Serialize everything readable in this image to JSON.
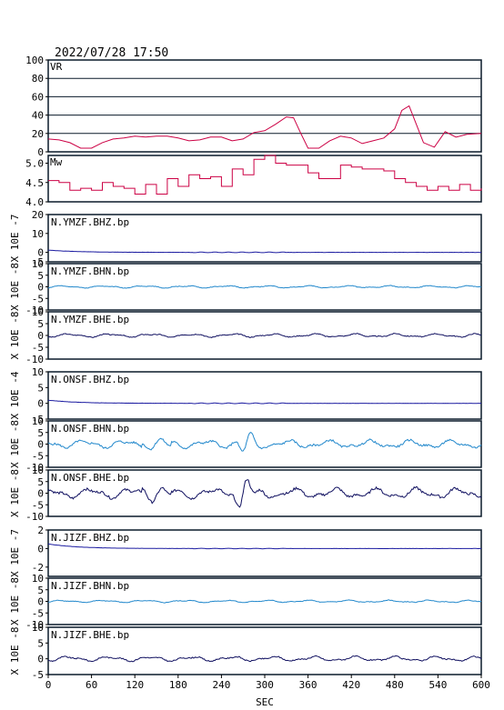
{
  "header": {
    "timestamp": "2022/07/28 17:50"
  },
  "colors": {
    "vr_mw": "#cc0044",
    "bhz": "#1a1aa0",
    "bhn": "#2288cc",
    "bhe": "#101060",
    "frame": "#0a1a2a"
  },
  "chart_data": {
    "type": "line",
    "xlabel": "SEC",
    "x_ticks": [
      0,
      60,
      120,
      180,
      240,
      300,
      360,
      420,
      480,
      540,
      600
    ],
    "xlim": [
      0,
      600
    ],
    "panels": [
      {
        "label": "VR",
        "ylim": [
          0,
          100
        ],
        "yticks": [
          0,
          20,
          40,
          60,
          80,
          100
        ],
        "grid": true,
        "series": {
          "x": [
            0,
            15,
            30,
            45,
            60,
            75,
            90,
            105,
            120,
            135,
            150,
            165,
            180,
            195,
            210,
            225,
            240,
            255,
            270,
            285,
            300,
            315,
            330,
            340,
            350,
            360,
            375,
            390,
            405,
            420,
            435,
            450,
            465,
            480,
            490,
            500,
            510,
            520,
            535,
            550,
            565,
            580,
            600
          ],
          "y": [
            14,
            13,
            10,
            4,
            4,
            10,
            14,
            15,
            17,
            16,
            17,
            17,
            15,
            12,
            13,
            16,
            16,
            12,
            14,
            21,
            23,
            30,
            38,
            37,
            20,
            4,
            4,
            12,
            17,
            15,
            9,
            12,
            15,
            25,
            45,
            50,
            30,
            10,
            5,
            22,
            16,
            19,
            20
          ]
        }
      },
      {
        "label": "Mw",
        "ylim": [
          4.0,
          5.2
        ],
        "yticks": [
          4.0,
          4.5,
          5.0
        ],
        "grid": false,
        "series": {
          "x": [
            0,
            15,
            30,
            45,
            60,
            75,
            90,
            105,
            120,
            135,
            150,
            165,
            180,
            195,
            210,
            225,
            240,
            255,
            270,
            285,
            300,
            315,
            330,
            345,
            360,
            375,
            390,
            405,
            420,
            435,
            450,
            465,
            480,
            495,
            510,
            525,
            540,
            555,
            570,
            585,
            600
          ],
          "y": [
            4.55,
            4.5,
            4.3,
            4.35,
            4.3,
            4.5,
            4.4,
            4.35,
            4.2,
            4.45,
            4.2,
            4.6,
            4.4,
            4.7,
            4.6,
            4.65,
            4.4,
            4.85,
            4.7,
            5.1,
            5.2,
            5.0,
            4.95,
            4.95,
            4.75,
            4.6,
            4.6,
            4.95,
            4.9,
            4.85,
            4.85,
            4.8,
            4.6,
            4.5,
            4.4,
            4.3,
            4.4,
            4.3,
            4.45,
            4.3,
            4.35
          ]
        }
      }
    ],
    "station_groups": [
      {
        "station": "N.YMZF",
        "traces": [
          {
            "name": "N.YMZF.BHZ.bp",
            "scale": "X 10E -7",
            "ylim": [
              -5,
              20
            ],
            "yticks": [
              -5,
              0,
              10,
              20
            ],
            "amplitude": 0.3,
            "decay": 1.2,
            "seed": 1
          },
          {
            "name": "N.YMZF.BHN.bp",
            "scale": "X 10E -8",
            "ylim": [
              -10,
              10
            ],
            "yticks": [
              -10,
              -5,
              0,
              5,
              10
            ],
            "amplitude": 0.6,
            "seed": 2
          },
          {
            "name": "N.YMZF.BHE.bp",
            "scale": "X 10E -8",
            "ylim": [
              -10,
              10
            ],
            "yticks": [
              -10,
              -5,
              0,
              5,
              10
            ],
            "amplitude": 0.9,
            "seed": 3
          }
        ]
      },
      {
        "station": "N.ONSF",
        "traces": [
          {
            "name": "N.ONSF.BHZ.bp",
            "scale": "X 10E -4",
            "ylim": [
              -5,
              10
            ],
            "yticks": [
              -5,
              0,
              5,
              10
            ],
            "amplitude": 0.2,
            "decay": 1.0,
            "seed": 4
          },
          {
            "name": "N.ONSF.BHN.bp",
            "scale": "X 10E -8",
            "ylim": [
              -10,
              10
            ],
            "yticks": [
              -10,
              -5,
              0,
              5,
              10
            ],
            "amplitude": 2.0,
            "burst_at": 275,
            "burst_amp": 4.0,
            "seed": 5
          },
          {
            "name": "N.ONSF.BHE.bp",
            "scale": "X 10E -8",
            "ylim": [
              -10,
              10
            ],
            "yticks": [
              -10,
              -5,
              0,
              5,
              10
            ],
            "amplitude": 2.6,
            "burst_at": 270,
            "burst_amp": 7.0,
            "seed": 6
          }
        ]
      },
      {
        "station": "N.JIZF",
        "traces": [
          {
            "name": "N.JIZF.BHZ.bp",
            "scale": "X 10E -7",
            "ylim": [
              -3,
              2
            ],
            "yticks": [
              -2,
              0,
              2
            ],
            "amplitude": 0.05,
            "decay": 0.5,
            "seed": 7
          },
          {
            "name": "N.JIZF.BHN.bp",
            "scale": "X 10E -8",
            "ylim": [
              -10,
              10
            ],
            "yticks": [
              -10,
              -5,
              0,
              5,
              10
            ],
            "amplitude": 0.6,
            "seed": 8
          },
          {
            "name": "N.JIZF.BHE.bp",
            "scale": "X 10E -8",
            "ylim": [
              -5,
              10
            ],
            "yticks": [
              -5,
              0,
              5,
              10
            ],
            "amplitude": 0.9,
            "seed": 9
          }
        ]
      }
    ]
  }
}
